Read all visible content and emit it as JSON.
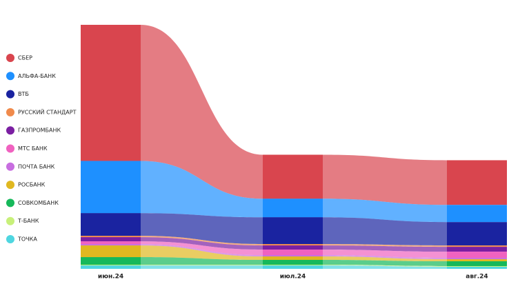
{
  "chart_data": {
    "type": "flow",
    "categories": [
      "июн.24",
      "июл.24",
      "авг.24"
    ],
    "legend": "left",
    "series": [
      {
        "name": "СБЕР",
        "color": "#d9454e",
        "values": [
          198,
          64,
          65
        ]
      },
      {
        "name": "АЛЬФА-БАНК",
        "color": "#1e90ff",
        "values": [
          76,
          27,
          25
        ]
      },
      {
        "name": "ВТБ",
        "color": "#1a23a0",
        "values": [
          33,
          39,
          34
        ]
      },
      {
        "name": "РУССКИЙ СТАНДАРТ",
        "color": "#f08a4b",
        "values": [
          2,
          2,
          2
        ]
      },
      {
        "name": "ГАЗПРОМБАНК",
        "color": "#7b1fa2",
        "values": [
          6,
          6,
          7
        ]
      },
      {
        "name": "МТС БАНК",
        "color": "#f062c0",
        "values": [
          4,
          8,
          9
        ]
      },
      {
        "name": "ПОЧТА БАНК",
        "color": "#c86ee0",
        "values": [
          2,
          2,
          2
        ]
      },
      {
        "name": "РОСБАНК",
        "color": "#e0b820",
        "values": [
          17,
          5,
          3
        ]
      },
      {
        "name": "СОВКОМБАНК",
        "color": "#16b85a",
        "values": [
          11,
          7,
          7
        ]
      },
      {
        "name": "Т-БАНК",
        "color": "#c8f07a",
        "values": [
          1,
          1,
          1
        ]
      },
      {
        "name": "ТОЧКА",
        "color": "#4fd6e0",
        "values": [
          5,
          5,
          3
        ]
      }
    ]
  }
}
